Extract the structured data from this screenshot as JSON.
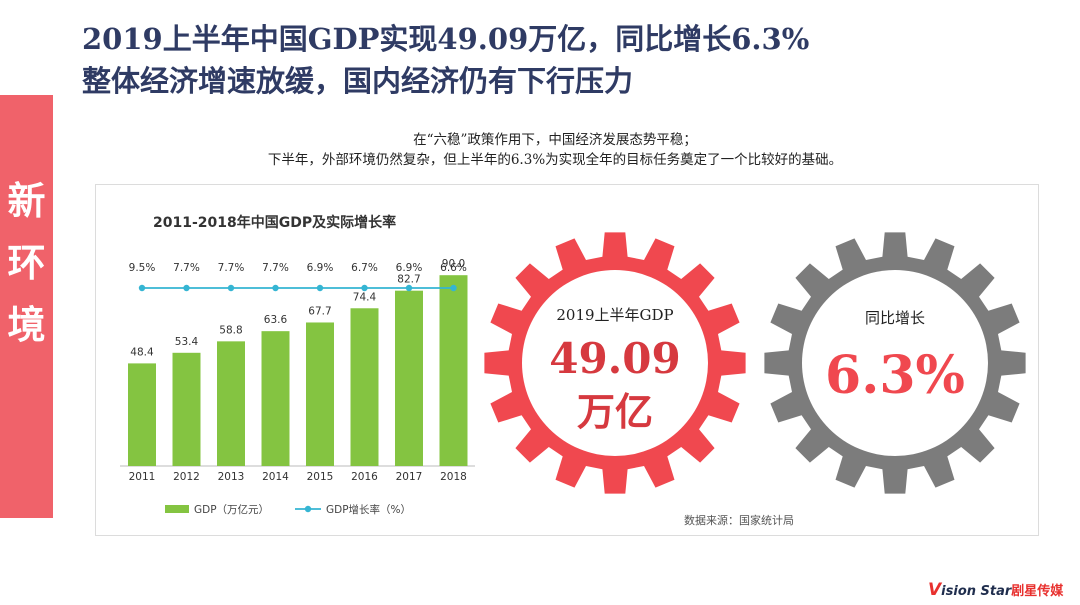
{
  "title": {
    "line1": "2019上半年中国GDP实现49.09万亿，同比增长6.3%",
    "line2": "整体经济增速放缓，国内经济仍有下行压力"
  },
  "subtitle": {
    "line1": "在“六稳”政策作用下，中国经济发展态势平稳；",
    "line2": "下半年，外部环境仍然复杂，但上半年的6.3%为实现全年的目标任务奠定了一个比较好的基础。"
  },
  "sidebar": {
    "chars": [
      "新",
      "环",
      "境"
    ],
    "color": "#f0626a"
  },
  "chart_data": {
    "type": "bar",
    "title": "2011-2018年中国GDP及实际增长率",
    "categories": [
      "2011",
      "2012",
      "2013",
      "2014",
      "2015",
      "2016",
      "2017",
      "2018"
    ],
    "series": [
      {
        "name": "GDP（万亿元）",
        "type": "bar",
        "color": "#84c441",
        "values": [
          48.4,
          53.4,
          58.8,
          63.6,
          67.7,
          74.4,
          82.7,
          90.0
        ],
        "labels": [
          "48.4",
          "53.4",
          "58.8",
          "63.6",
          "67.7",
          "74.4",
          "82.7",
          "90.0"
        ]
      },
      {
        "name": "GDP增长率（%）",
        "type": "line",
        "color": "#35b5d3",
        "values": [
          9.5,
          7.7,
          7.7,
          7.7,
          6.9,
          6.7,
          6.9,
          6.6
        ],
        "labels": [
          "9.5%",
          "7.7%",
          "7.7%",
          "7.7%",
          "6.9%",
          "6.7%",
          "6.9%",
          "6.6%"
        ]
      }
    ],
    "legend": "bottom",
    "grid": false
  },
  "gears": {
    "left": {
      "label": "2019上半年GDP",
      "value": "49.09",
      "unit": "万亿",
      "color": "#f0484f",
      "text_color": "#d6393f"
    },
    "right": {
      "label": "同比增长",
      "value": "6.3%",
      "color": "#7c7c7c",
      "text_color": "#f0484f"
    }
  },
  "source": "数据来源：国家统计局",
  "logo": {
    "v": "V",
    "text": "ision Star",
    "cn": "剧星传媒"
  }
}
